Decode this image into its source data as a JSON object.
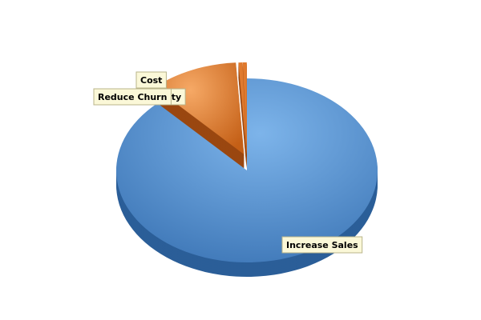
{
  "chart_data": {
    "type": "pie",
    "categories": [
      "Increase Sales",
      "Reduce Churn",
      "Cost",
      "Service Quality"
    ],
    "values": [
      88,
      11,
      0.5,
      0.5
    ],
    "colors": [
      "#5b93cf",
      "#e07a2e",
      "#e07a2e",
      "#e07a2e"
    ]
  }
}
